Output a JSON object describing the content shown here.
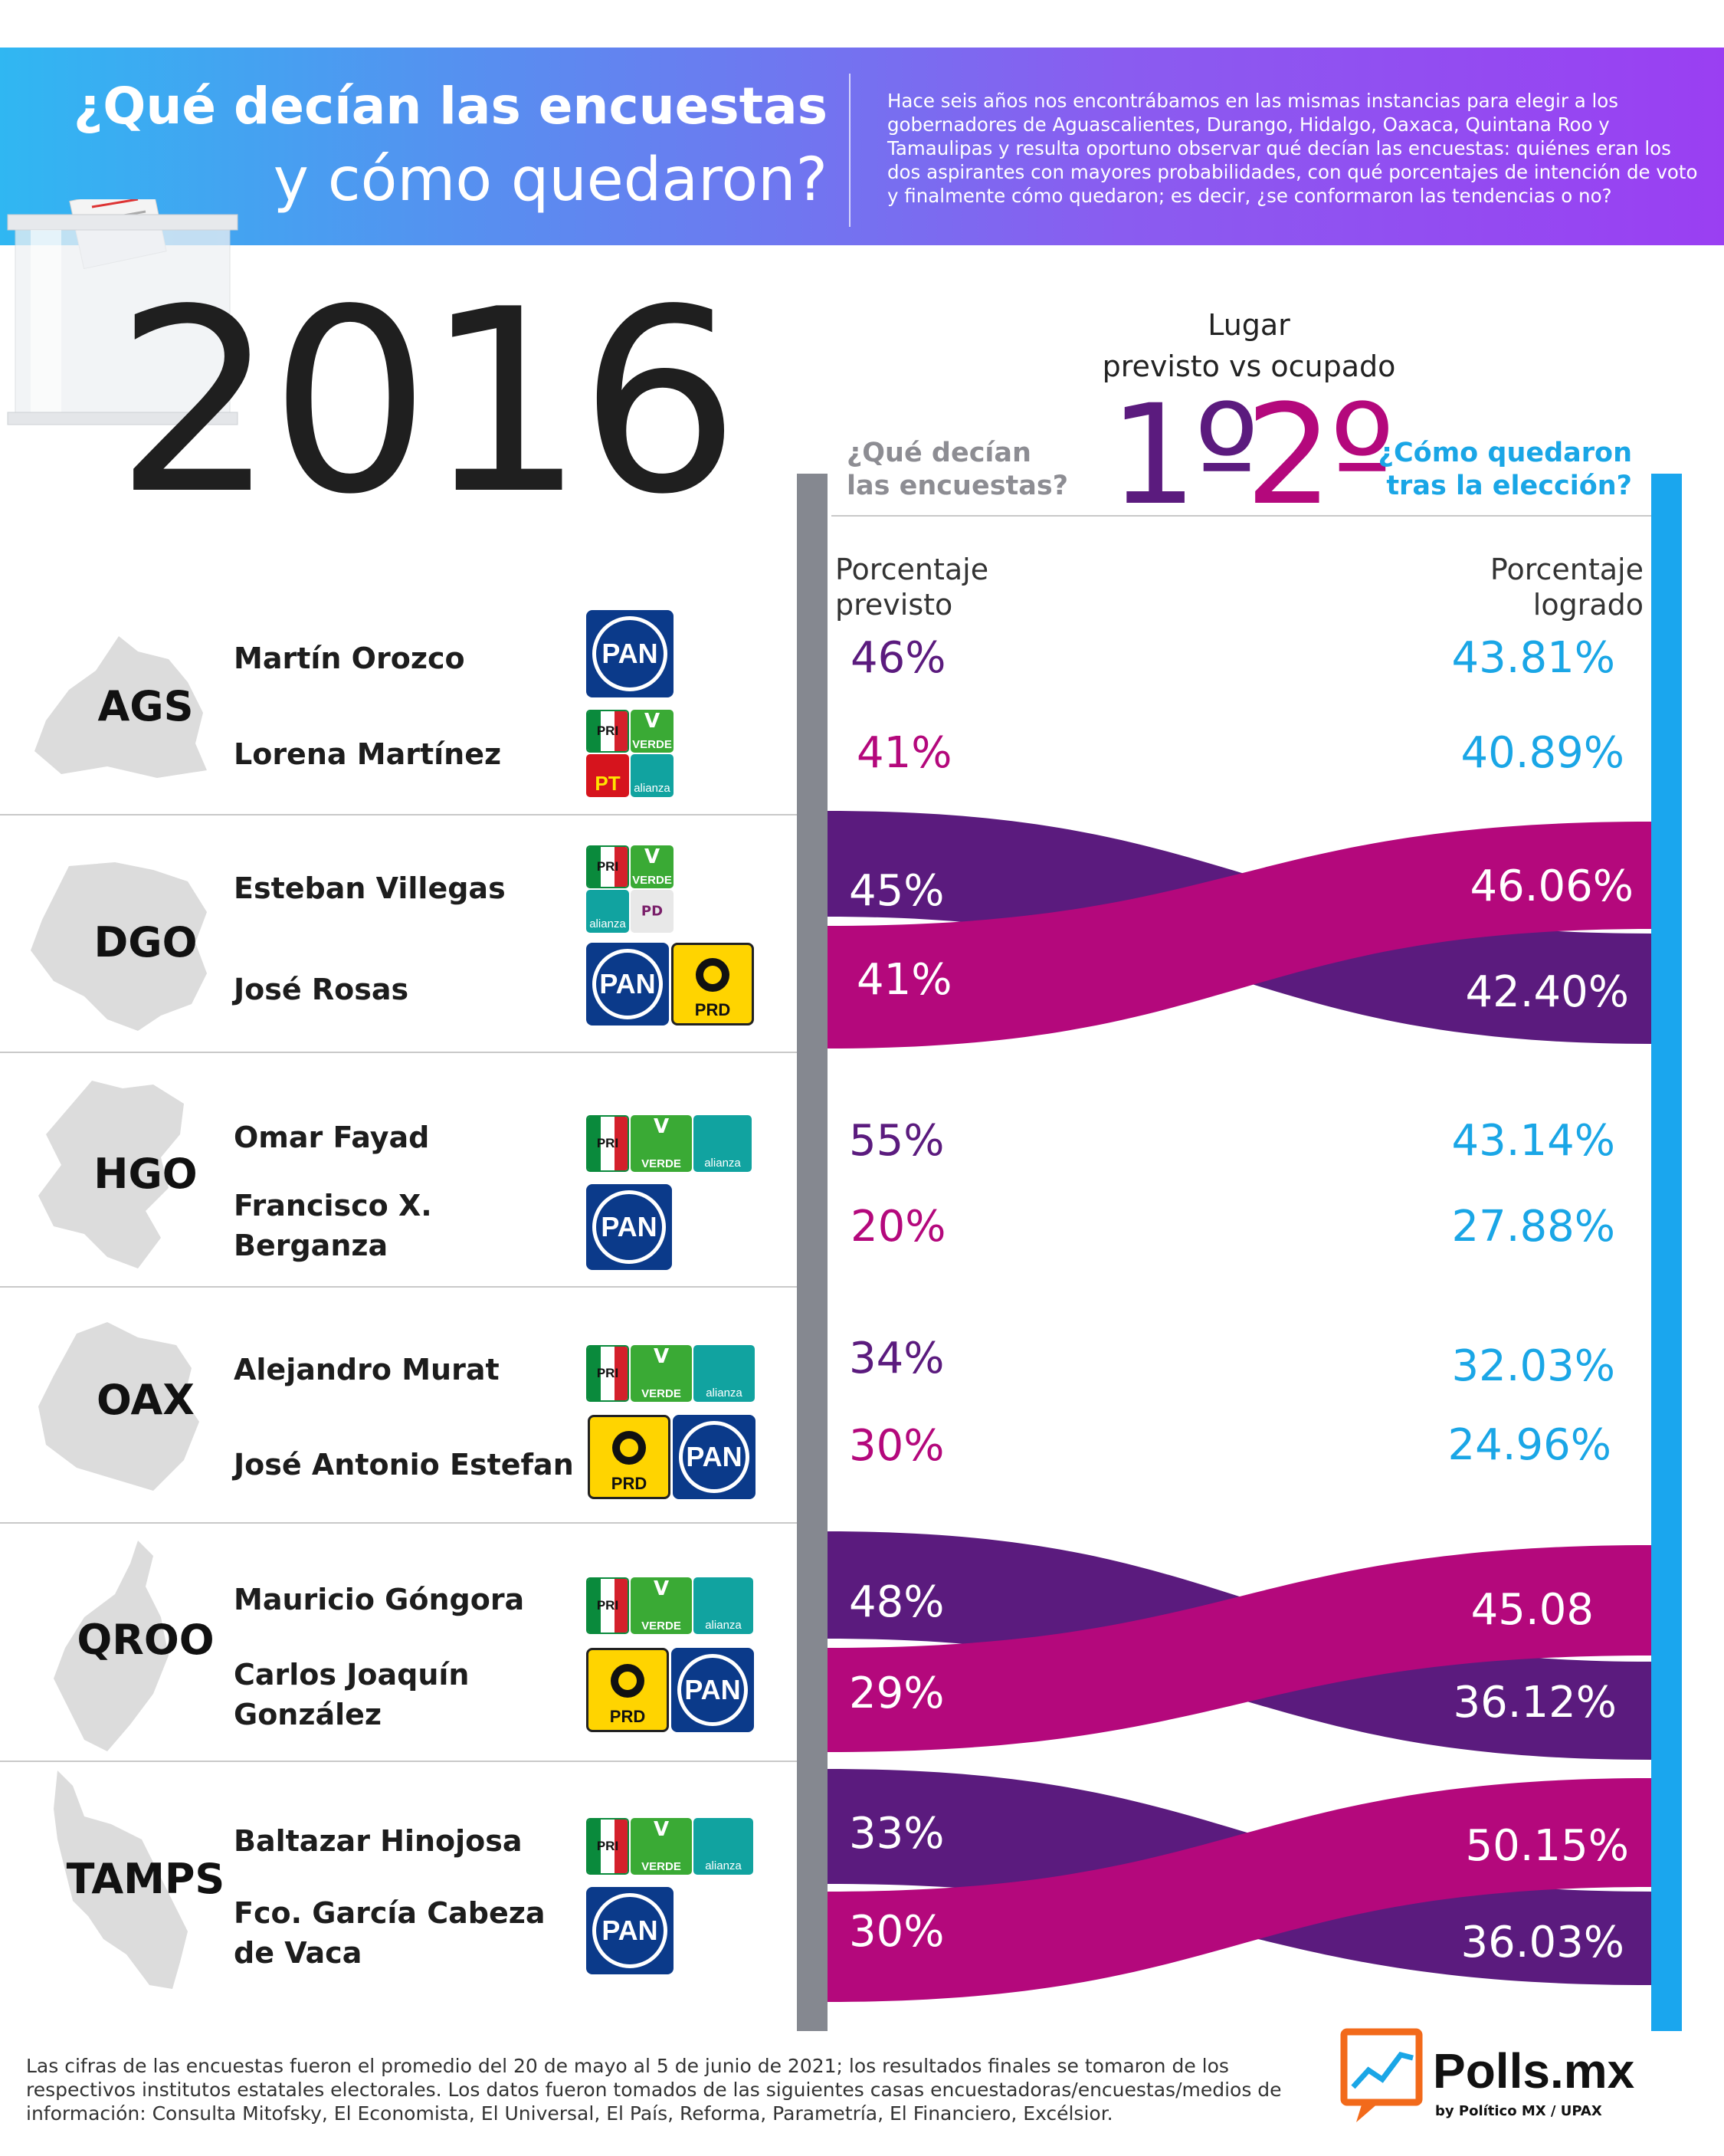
{
  "header": {
    "title_line1": "¿Qué decían las encuestas",
    "title_line2": "y cómo quedaron?",
    "intro": "Hace seis años nos encontrábamos en las mismas instancias para elegir a los gobernadores de Aguascalientes, Durango, Hidalgo, Oaxaca, Quintana Roo y Tamaulipas y resulta oportuno observar qué decían las encuestas: quiénes eran los dos aspirantes con mayores probabilidades, con qué porcentajes de intención de voto y finalmente cómo quedaron; es decir, ¿se conformaron las tendencias o no?"
  },
  "year": "2016",
  "legend": {
    "lugar_line1": "Lugar",
    "lugar_line2": "previsto vs ocupado",
    "first": "1º",
    "second": "2º",
    "left_question": "¿Qué decían las encuestas?",
    "right_question": "¿Cómo quedaron tras la elección?",
    "predicted_label": "Porcentaje previsto",
    "achieved_label": "Porcentaje logrado"
  },
  "colors": {
    "first": "#5b1b7e",
    "second": "#b4087c",
    "achieved": "#1aa6e6",
    "survey_bar": "#858890"
  },
  "chart_data": {
    "type": "slope",
    "columns": [
      "Porcentaje previsto",
      "Porcentaje logrado"
    ],
    "states": [
      {
        "abbr": "AGS",
        "swapped": false,
        "candidates": [
          {
            "name": "Martín Orozco",
            "parties": [
              "PAN"
            ],
            "predicted": 46,
            "predicted_label": "46%",
            "achieved": 43.81,
            "achieved_label": "43.81%"
          },
          {
            "name": "Lorena Martínez",
            "parties": [
              "PRI",
              "VERDE",
              "PT",
              "Nueva Alianza"
            ],
            "predicted": 41,
            "predicted_label": "41%",
            "achieved": 40.89,
            "achieved_label": "40.89%"
          }
        ]
      },
      {
        "abbr": "DGO",
        "swapped": true,
        "candidates": [
          {
            "name": "Esteban Villegas",
            "parties": [
              "PRI",
              "VERDE",
              "Nueva Alianza",
              "PD"
            ],
            "predicted": 45,
            "predicted_label": "45%",
            "achieved": 42.4,
            "achieved_label": "42.40%"
          },
          {
            "name": "José Rosas",
            "parties": [
              "PAN",
              "PRD"
            ],
            "predicted": 41,
            "predicted_label": "41%",
            "achieved": 46.06,
            "achieved_label": "46.06%"
          }
        ]
      },
      {
        "abbr": "HGO",
        "swapped": false,
        "candidates": [
          {
            "name": "Omar Fayad",
            "parties": [
              "PRI",
              "VERDE",
              "Nueva Alianza"
            ],
            "predicted": 55,
            "predicted_label": "55%",
            "achieved": 43.14,
            "achieved_label": "43.14%"
          },
          {
            "name": "Francisco X. Berganza",
            "parties": [
              "PAN"
            ],
            "predicted": 20,
            "predicted_label": "20%",
            "achieved": 27.88,
            "achieved_label": "27.88%"
          }
        ]
      },
      {
        "abbr": "OAX",
        "swapped": false,
        "candidates": [
          {
            "name": "Alejandro Murat",
            "parties": [
              "PRI",
              "VERDE",
              "Nueva Alianza"
            ],
            "predicted": 34,
            "predicted_label": "34%",
            "achieved": 32.03,
            "achieved_label": "32.03%"
          },
          {
            "name": "José Antonio Estefan",
            "parties": [
              "PRD",
              "PAN"
            ],
            "predicted": 30,
            "predicted_label": "30%",
            "achieved": 24.96,
            "achieved_label": "24.96%"
          }
        ]
      },
      {
        "abbr": "QROO",
        "swapped": true,
        "candidates": [
          {
            "name": "Mauricio Góngora",
            "parties": [
              "PRI",
              "VERDE",
              "Nueva Alianza"
            ],
            "predicted": 48,
            "predicted_label": "48%",
            "achieved": 36.12,
            "achieved_label": "36.12%"
          },
          {
            "name": "Carlos Joaquín González",
            "parties": [
              "PRD",
              "PAN"
            ],
            "predicted": 29,
            "predicted_label": "29%",
            "achieved": 45.08,
            "achieved_label": "45.08"
          }
        ]
      },
      {
        "abbr": "TAMPS",
        "swapped": true,
        "candidates": [
          {
            "name": "Baltazar Hinojosa",
            "parties": [
              "PRI",
              "VERDE",
              "Nueva Alianza"
            ],
            "predicted": 33,
            "predicted_label": "33%",
            "achieved": 36.03,
            "achieved_label": "36.03%"
          },
          {
            "name": "Fco. García Cabeza de Vaca",
            "parties": [
              "PAN"
            ],
            "predicted": 30,
            "predicted_label": "30%",
            "achieved": 50.15,
            "achieved_label": "50.15%"
          }
        ]
      }
    ]
  },
  "rows": {
    "ags": {
      "abbr": "AGS",
      "c1": "Martín Orozco",
      "c2": "Lorena Martínez",
      "p1": "46%",
      "p2": "41%",
      "a1": "43.81%",
      "a2": "40.89%"
    },
    "dgo": {
      "abbr": "DGO",
      "c1": "Esteban Villegas",
      "c2": "José Rosas",
      "p1": "45%",
      "p2": "41%",
      "a1": "46.06%",
      "a2": "42.40%"
    },
    "hgo": {
      "abbr": "HGO",
      "c1": "Omar Fayad",
      "c2a": "Francisco X.",
      "c2b": "Berganza",
      "p1": "55%",
      "p2": "20%",
      "a1": "43.14%",
      "a2": "27.88%"
    },
    "oax": {
      "abbr": "OAX",
      "c1": "Alejandro Murat",
      "c2": "José Antonio Estefan",
      "p1": "34%",
      "p2": "30%",
      "a1": "32.03%",
      "a2": "24.96%"
    },
    "qroo": {
      "abbr": "QROO",
      "c1": "Mauricio Góngora",
      "c2a": "Carlos Joaquín",
      "c2b": "González",
      "p1": "48%",
      "p2": "29%",
      "a1": "45.08",
      "a2": "36.12%"
    },
    "tamps": {
      "abbr": "TAMPS",
      "c1": "Baltazar Hinojosa",
      "c2a": "Fco. García Cabeza",
      "c2b": "de Vaca",
      "p1": "33%",
      "p2": "30%",
      "a1": "50.15%",
      "a2": "36.03%"
    }
  },
  "parties": {
    "pan": "PAN",
    "prd": "PRD",
    "pri": "PRI",
    "verde": "VERDE",
    "alianza": "alianza",
    "pt": "PT",
    "pd": "PD"
  },
  "footer": {
    "note": "Las cifras de las encuestas fueron el promedio del 20 de mayo al 5 de junio de 2021; los resultados finales se tomaron de los respectivos institutos estatales electorales. Los datos fueron tomados de las siguientes casas encuestadoras/encuestas/medios de información: Consulta Mitofsky, El Economista, El Universal, El País, Reforma, Parametría, El Financiero, Excélsior.",
    "brand": "Polls.mx",
    "brand_sub": "by Político MX / UPAX"
  }
}
